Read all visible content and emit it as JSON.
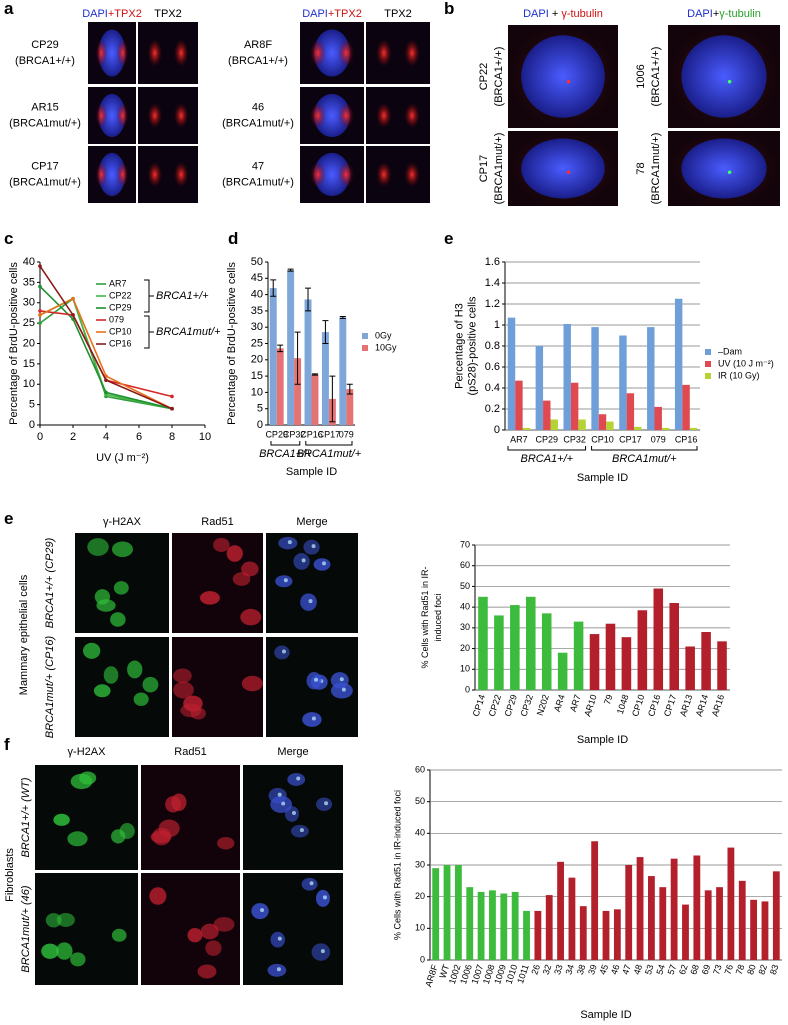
{
  "panel_labels": [
    "a",
    "b",
    "c",
    "d",
    "e",
    "e",
    "f"
  ],
  "a": {
    "header": {
      "dapi": "DAPI",
      "merge": "+TPX2",
      "single": "TPX2"
    },
    "samples": [
      {
        "name": "CP29",
        "genotype": "(BRCA1+/+)"
      },
      {
        "name": "AR15",
        "genotype": "(BRCA1mut/+)"
      },
      {
        "name": "CP17",
        "genotype": "(BRCA1mut/+)"
      },
      {
        "name": "AR8F",
        "genotype": "(BRCA1+/+)"
      },
      {
        "name": "46",
        "genotype": "(BRCA1mut/+)"
      },
      {
        "name": "47",
        "genotype": "(BRCA1mut/+)"
      }
    ]
  },
  "b": {
    "left": {
      "header": [
        "DAPI",
        " + ",
        "γ-tubulin"
      ],
      "samples": [
        {
          "name": "CP22",
          "genotype": "(BRCA1+/+)"
        },
        {
          "name": "CP17",
          "genotype": "(BRCA1mut/+)"
        }
      ]
    },
    "right": {
      "header": [
        "DAPI",
        "+",
        "γ-tubulin"
      ],
      "samples": [
        {
          "name": "1006",
          "genotype": "(BRCA1+/+)"
        },
        {
          "name": "78",
          "genotype": "(BRCA1mut/+)"
        }
      ]
    }
  },
  "e_images": {
    "side": "Mammary epithelial cells",
    "headers": [
      "γ-H2AX",
      "Rad51",
      "Merge"
    ],
    "rows": [
      "BRCA1+/+ (CP29)",
      "BRCA1mut/+ (CP16)"
    ]
  },
  "f_images": {
    "side": "Fibroblasts",
    "headers": [
      "γ-H2AX",
      "Rad51",
      "Merge"
    ],
    "rows": [
      "BRCA1+/+ (WT)",
      "BRCA1mut/+ (46)"
    ]
  },
  "chart_data": [
    {
      "type": "line",
      "xlabel": "UV (J m⁻²)",
      "ylabel": "Percentage of BrdU-positive cells",
      "x": [
        0,
        2,
        4,
        8
      ],
      "xlim": [
        0,
        10
      ],
      "xticks": [
        0,
        2,
        4,
        6,
        8,
        10
      ],
      "ylim": [
        0,
        40
      ],
      "yticks": [
        0,
        5,
        10,
        15,
        20,
        25,
        30,
        35,
        40
      ],
      "series": [
        {
          "name": "AR7",
          "color": "#2e9e3a",
          "values": [
            25,
            31,
            7,
            4
          ]
        },
        {
          "name": "CP22",
          "color": "#45b845",
          "values": [
            27,
            31,
            7.5,
            4
          ]
        },
        {
          "name": "CP29",
          "color": "#1f8f30",
          "values": [
            34,
            26,
            8,
            4
          ]
        },
        {
          "name": "079",
          "color": "#d62728",
          "values": [
            28,
            27,
            11,
            7
          ]
        },
        {
          "name": "CP10",
          "color": "#e8701a",
          "values": [
            27,
            31,
            12,
            4
          ]
        },
        {
          "name": "CP16",
          "color": "#8b1a1a",
          "values": [
            39,
            27,
            11,
            4
          ]
        }
      ],
      "group_labels": [
        "BRCA1+/+",
        "BRCA1mut/+"
      ]
    },
    {
      "type": "bar",
      "xlabel": "Sample ID",
      "ylabel": "Percentage of BrdU-positive cells",
      "categories": [
        "CP29",
        "CP32",
        "CP16",
        "CP17",
        "079"
      ],
      "ylim": [
        0,
        50
      ],
      "yticks": [
        0,
        5,
        10,
        15,
        20,
        25,
        30,
        35,
        40,
        45,
        50
      ],
      "series": [
        {
          "name": "0Gy",
          "color": "#7ea6d8",
          "values": [
            42,
            47.5,
            38.5,
            28.5,
            33
          ],
          "errors": [
            2.5,
            0.3,
            3.5,
            3.5,
            0.3
          ]
        },
        {
          "name": "10Gy",
          "color": "#e57373",
          "values": [
            23.5,
            20.5,
            15.5,
            8,
            11
          ],
          "errors": [
            1,
            8,
            0.2,
            7,
            1.5
          ]
        }
      ],
      "group_labels": [
        "BRCA1+/+",
        "BRCA1mut/+"
      ]
    },
    {
      "type": "bar",
      "xlabel": "Sample ID",
      "ylabel": [
        "Percentage of H3",
        "(pS28)-positive cells"
      ],
      "categories": [
        "AR7",
        "CP29",
        "CP32",
        "CP10",
        "CP17",
        "079",
        "CP16"
      ],
      "ylim": [
        0,
        1.6
      ],
      "yticks": [
        0,
        0.2,
        0.4,
        0.6,
        0.8,
        1,
        1.2,
        1.4,
        1.6
      ],
      "grid": true,
      "series": [
        {
          "name": "–Dam",
          "color": "#6f9fd8",
          "values": [
            1.07,
            0.8,
            1.01,
            0.98,
            0.9,
            0.98,
            1.25
          ]
        },
        {
          "name": "UV (10 J m⁻²)",
          "color": "#e0494f",
          "values": [
            0.47,
            0.28,
            0.45,
            0.15,
            0.35,
            0.22,
            0.43
          ]
        },
        {
          "name": "IR (10 Gy)",
          "color": "#b5d334",
          "values": [
            0.02,
            0.1,
            0.1,
            0.08,
            0.03,
            0.02,
            0.02
          ]
        }
      ],
      "group_labels": [
        "BRCA1+/+",
        "BRCA1mut/+"
      ]
    },
    {
      "type": "bar",
      "xlabel": "Sample ID",
      "ylabel": [
        "% Cells with Rad51 in IR-",
        "induced foci"
      ],
      "categories": [
        "CP14",
        "CP22",
        "CP29",
        "CP32",
        "N202",
        "AR4",
        "AR7",
        "AR10",
        "79",
        "1048",
        "CP10",
        "CP16",
        "CP17",
        "AR13",
        "AR14",
        "AR16"
      ],
      "values": [
        45,
        36,
        41,
        45,
        37,
        18,
        33,
        27,
        32,
        25.5,
        38.5,
        49,
        42,
        21,
        28,
        23.5
      ],
      "colors": [
        "#3dbb3d",
        "#3dbb3d",
        "#3dbb3d",
        "#3dbb3d",
        "#3dbb3d",
        "#3dbb3d",
        "#3dbb3d",
        "#b3202c",
        "#b3202c",
        "#b3202c",
        "#b3202c",
        "#b3202c",
        "#b3202c",
        "#b3202c",
        "#b3202c",
        "#b3202c"
      ],
      "ylim": [
        0,
        70
      ],
      "yticks": [
        0,
        10,
        20,
        30,
        40,
        50,
        60,
        70
      ],
      "grid": true
    },
    {
      "type": "bar",
      "xlabel": "Sample ID",
      "ylabel": "% Cells with Rad51 in IR-induced foci",
      "categories": [
        "AR8F",
        "WT",
        "1002",
        "1006",
        "1007",
        "1008",
        "1009",
        "1010",
        "1011",
        "26",
        "32",
        "33",
        "34",
        "38",
        "39",
        "45",
        "46",
        "47",
        "48",
        "53",
        "54",
        "57",
        "62",
        "68",
        "69",
        "73",
        "76",
        "78",
        "80",
        "82",
        "83"
      ],
      "values": [
        29,
        30,
        30,
        23,
        21.5,
        22,
        21,
        21.5,
        15.5,
        15.5,
        20.5,
        31,
        26,
        17,
        37.5,
        15.5,
        16,
        30,
        32.5,
        26.5,
        23,
        32,
        17.5,
        33,
        22,
        23,
        35.5,
        25,
        19,
        18.5,
        28
      ],
      "colors": [
        "#3dbb3d",
        "#3dbb3d",
        "#3dbb3d",
        "#3dbb3d",
        "#3dbb3d",
        "#3dbb3d",
        "#3dbb3d",
        "#3dbb3d",
        "#3dbb3d",
        "#b3202c",
        "#b3202c",
        "#b3202c",
        "#b3202c",
        "#b3202c",
        "#b3202c",
        "#b3202c",
        "#b3202c",
        "#b3202c",
        "#b3202c",
        "#b3202c",
        "#b3202c",
        "#b3202c",
        "#b3202c",
        "#b3202c",
        "#b3202c",
        "#b3202c",
        "#b3202c",
        "#b3202c",
        "#b3202c",
        "#b3202c",
        "#b3202c"
      ],
      "ylim": [
        0,
        60
      ],
      "yticks": [
        0,
        10,
        20,
        30,
        40,
        50,
        60
      ],
      "grid": true
    }
  ]
}
